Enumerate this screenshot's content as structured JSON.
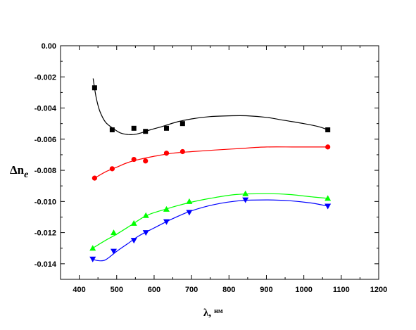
{
  "chart_data": {
    "type": "scatter",
    "xlabel_main": "λ,",
    "xlabel_unit": "нм",
    "ylabel_main": "Δn",
    "ylabel_sub": "e",
    "xlim": [
      350,
      1200
    ],
    "ylim": [
      -0.015,
      0.0
    ],
    "x_ticks": [
      400,
      500,
      600,
      700,
      800,
      900,
      1000,
      1100,
      1200
    ],
    "x_tick_labels": [
      "400",
      "500",
      "600",
      "700",
      "800",
      "900",
      "1000",
      "1100",
      "1200"
    ],
    "y_ticks": [
      0.0,
      -0.002,
      -0.004,
      -0.006,
      -0.008,
      -0.01,
      -0.012,
      -0.014
    ],
    "y_tick_labels": [
      "0.00",
      "-0.002",
      "-0.004",
      "-0.006",
      "-0.008",
      "-0.010",
      "-0.012",
      "-0.014"
    ],
    "grid": false,
    "series": [
      {
        "marker": "square",
        "color": "#000000",
        "points": [
          [
            441,
            -0.0027
          ],
          [
            488,
            -0.0054
          ],
          [
            546,
            -0.0053
          ],
          [
            577,
            -0.0055
          ],
          [
            633,
            -0.0053
          ],
          [
            676,
            -0.005
          ],
          [
            1064,
            -0.0054
          ]
        ],
        "curve": [
          [
            437,
            -0.0021
          ],
          [
            445,
            -0.0033
          ],
          [
            455,
            -0.0042
          ],
          [
            470,
            -0.0049
          ],
          [
            490,
            -0.0053
          ],
          [
            510,
            -0.0056
          ],
          [
            530,
            -0.0057
          ],
          [
            546,
            -0.0057
          ],
          [
            565,
            -0.0056
          ],
          [
            590,
            -0.0054
          ],
          [
            620,
            -0.0052
          ],
          [
            660,
            -0.0049
          ],
          [
            700,
            -0.0047
          ],
          [
            750,
            -0.00455
          ],
          [
            800,
            -0.0045
          ],
          [
            850,
            -0.0045
          ],
          [
            900,
            -0.0046
          ],
          [
            950,
            -0.0048
          ],
          [
            1000,
            -0.005
          ],
          [
            1040,
            -0.0052
          ],
          [
            1064,
            -0.0054
          ]
        ]
      },
      {
        "marker": "circle",
        "color": "#ff0000",
        "points": [
          [
            441,
            -0.0085
          ],
          [
            488,
            -0.0079
          ],
          [
            546,
            -0.0073
          ],
          [
            577,
            -0.0074
          ],
          [
            633,
            -0.0069
          ],
          [
            676,
            -0.0068
          ],
          [
            1064,
            -0.0065
          ]
        ],
        "curve": [
          [
            441,
            -0.0085
          ],
          [
            470,
            -0.0081
          ],
          [
            500,
            -0.0078
          ],
          [
            530,
            -0.0075
          ],
          [
            560,
            -0.0073
          ],
          [
            600,
            -0.0071
          ],
          [
            650,
            -0.0069
          ],
          [
            700,
            -0.0068
          ],
          [
            760,
            -0.0067
          ],
          [
            830,
            -0.0066
          ],
          [
            900,
            -0.0065
          ],
          [
            980,
            -0.0065
          ],
          [
            1064,
            -0.0065
          ]
        ]
      },
      {
        "marker": "triangle-up",
        "color": "#00ff00",
        "points": [
          [
            436,
            -0.013
          ],
          [
            492,
            -0.012
          ],
          [
            546,
            -0.0114
          ],
          [
            578,
            -0.0109
          ],
          [
            633,
            -0.0105
          ],
          [
            694,
            -0.01
          ],
          [
            844,
            -0.0095
          ],
          [
            1064,
            -0.0098
          ]
        ],
        "curve": [
          [
            436,
            -0.013
          ],
          [
            470,
            -0.0125
          ],
          [
            500,
            -0.0121
          ],
          [
            540,
            -0.0115
          ],
          [
            580,
            -0.0109
          ],
          [
            630,
            -0.0105
          ],
          [
            690,
            -0.0101
          ],
          [
            750,
            -0.0098
          ],
          [
            820,
            -0.00955
          ],
          [
            900,
            -0.0095
          ],
          [
            960,
            -0.00955
          ],
          [
            1020,
            -0.0097
          ],
          [
            1064,
            -0.0098
          ]
        ]
      },
      {
        "marker": "triangle-down",
        "color": "#0000ff",
        "points": [
          [
            436,
            -0.0137
          ],
          [
            492,
            -0.0132
          ],
          [
            546,
            -0.0125
          ],
          [
            578,
            -0.012
          ],
          [
            633,
            -0.0113
          ],
          [
            694,
            -0.0107
          ],
          [
            844,
            -0.0099
          ],
          [
            1064,
            -0.0103
          ]
        ],
        "curve": [
          [
            436,
            -0.0137
          ],
          [
            450,
            -0.0138
          ],
          [
            470,
            -0.01375
          ],
          [
            500,
            -0.0132
          ],
          [
            530,
            -0.0127
          ],
          [
            560,
            -0.0122
          ],
          [
            600,
            -0.0117
          ],
          [
            650,
            -0.0111
          ],
          [
            700,
            -0.0106
          ],
          [
            760,
            -0.0102
          ],
          [
            830,
            -0.00995
          ],
          [
            900,
            -0.0099
          ],
          [
            960,
            -0.00995
          ],
          [
            1020,
            -0.0101
          ],
          [
            1064,
            -0.0103
          ]
        ]
      }
    ]
  }
}
